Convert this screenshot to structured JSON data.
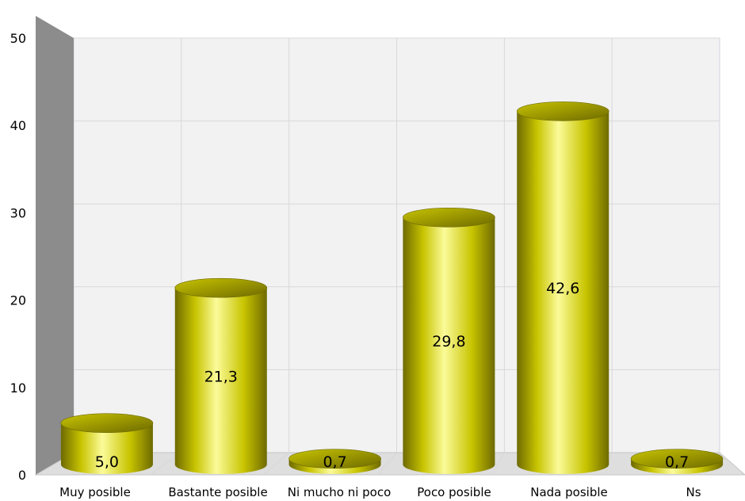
{
  "chart_data": {
    "type": "bar",
    "style": "3d-cylinder",
    "categories": [
      "Muy posible",
      "Bastante posible",
      "Ni mucho ni poco",
      "Poco posible",
      "Nada posible",
      "Ns"
    ],
    "values": [
      5.0,
      21.3,
      0.7,
      29.8,
      42.6,
      0.7
    ],
    "value_labels": [
      "5,0",
      "21,3",
      "0,7",
      "29,8",
      "42,6",
      "0,7"
    ],
    "title": "",
    "xlabel": "",
    "ylabel": "",
    "ylim": [
      0,
      50
    ],
    "yticks": [
      "0",
      "10",
      "20",
      "30",
      "40",
      "50"
    ],
    "grid": true,
    "legend": "none",
    "colors": {
      "bar": "#c8c400",
      "bar_highlight": "#fbfb9a",
      "bar_shadow": "#6e6a00",
      "side_wall": "#8c8c8c",
      "back_wall": "#f2f2f2",
      "floor": "#dedede",
      "grid": "#d8d8d8"
    }
  }
}
